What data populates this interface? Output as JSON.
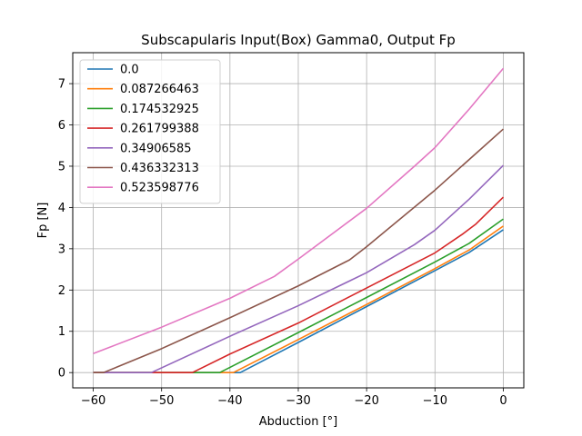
{
  "chart_data": {
    "type": "line",
    "title": "Subscapularis Input(Box) Gamma0, Output Fp",
    "xlabel": "Abduction [°]",
    "ylabel": "Fp [N]",
    "xlim": [
      -63,
      3
    ],
    "ylim": [
      -0.37,
      7.75
    ],
    "xticks": [
      -60,
      -50,
      -40,
      -30,
      -20,
      -10,
      0
    ],
    "yticks": [
      0,
      1,
      2,
      3,
      4,
      5,
      6,
      7
    ],
    "grid": true,
    "legend_position": "upper-left",
    "series": [
      {
        "name": "0.0",
        "color": "#1f77b4",
        "x": [
          -60,
          -38.5,
          -30,
          -20,
          -10,
          -5,
          0
        ],
        "y": [
          0,
          0,
          0.73,
          1.6,
          2.47,
          2.91,
          3.46
        ]
      },
      {
        "name": "0.087266463",
        "color": "#ff7f0e",
        "x": [
          -60,
          -39.5,
          -30,
          -20,
          -10,
          -5,
          0
        ],
        "y": [
          0,
          0,
          0.8,
          1.65,
          2.52,
          2.97,
          3.55
        ]
      },
      {
        "name": "0.174532925",
        "color": "#2ca02c",
        "x": [
          -60,
          -41.5,
          -30,
          -20,
          -10,
          -5,
          0
        ],
        "y": [
          0,
          0,
          0.97,
          1.82,
          2.68,
          3.13,
          3.72
        ]
      },
      {
        "name": "0.261799388",
        "color": "#d62728",
        "x": [
          -60,
          -45.5,
          -40,
          -30,
          -20,
          -10,
          -6,
          -4,
          0
        ],
        "y": [
          0,
          0,
          0.45,
          1.2,
          2.05,
          2.9,
          3.35,
          3.6,
          4.25
        ]
      },
      {
        "name": "0.34906585",
        "color": "#9467bd",
        "x": [
          -60,
          -51.5,
          -40,
          -30,
          -20,
          -13,
          -10,
          -5,
          0
        ],
        "y": [
          0,
          0,
          0.88,
          1.62,
          2.42,
          3.1,
          3.45,
          4.2,
          5.02
        ]
      },
      {
        "name": "0.436332313",
        "color": "#8c564b",
        "x": [
          -60,
          -58.5,
          -50,
          -40,
          -30,
          -22.5,
          -20,
          -10,
          0
        ],
        "y": [
          0,
          0,
          0.58,
          1.33,
          2.1,
          2.73,
          3.05,
          4.42,
          5.9
        ]
      },
      {
        "name": "0.523598776",
        "color": "#e377c2",
        "x": [
          -60,
          -50,
          -40,
          -33.5,
          -30,
          -20,
          -13,
          -10,
          -5,
          0
        ],
        "y": [
          0.46,
          1.1,
          1.8,
          2.33,
          2.75,
          3.98,
          5.0,
          5.45,
          6.38,
          7.37
        ]
      }
    ]
  }
}
